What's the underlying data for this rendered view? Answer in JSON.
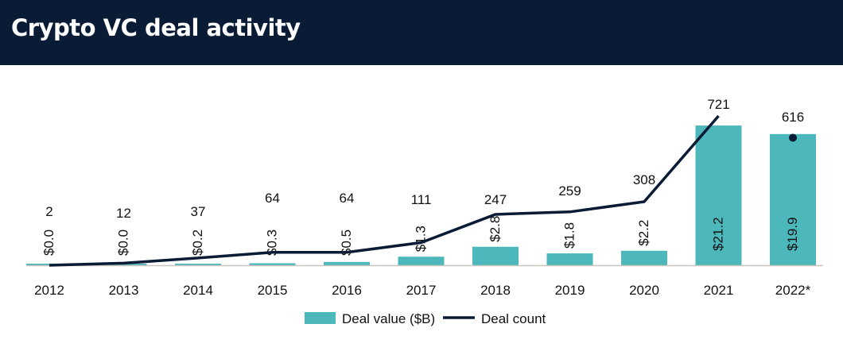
{
  "header": {
    "title": "Crypto VC deal activity"
  },
  "chart_data": {
    "type": "bar+line",
    "title": "Crypto VC deal activity",
    "categories": [
      "2012",
      "2013",
      "2014",
      "2015",
      "2016",
      "2017",
      "2018",
      "2019",
      "2020",
      "2021",
      "2022*"
    ],
    "series": [
      {
        "name": "Deal value ($B)",
        "type": "bar",
        "color": "#4db8bb",
        "values": [
          0.0,
          0.0,
          0.2,
          0.3,
          0.5,
          1.3,
          2.8,
          1.8,
          2.2,
          21.2,
          19.9
        ],
        "labels": [
          "$0.0",
          "$0.0",
          "$0.2",
          "$0.3",
          "$0.5",
          "$1.3",
          "$2.8",
          "$1.8",
          "$2.2",
          "$21.2",
          "$19.9"
        ]
      },
      {
        "name": "Deal count",
        "type": "line",
        "color": "#0a1b36",
        "values": [
          2,
          12,
          37,
          64,
          64,
          111,
          247,
          259,
          308,
          721,
          616
        ],
        "labels": [
          "2",
          "12",
          "37",
          "64",
          "64",
          "111",
          "247",
          "259",
          "308",
          "721",
          "616"
        ]
      }
    ],
    "legend": "bottom-center",
    "grid": false
  }
}
